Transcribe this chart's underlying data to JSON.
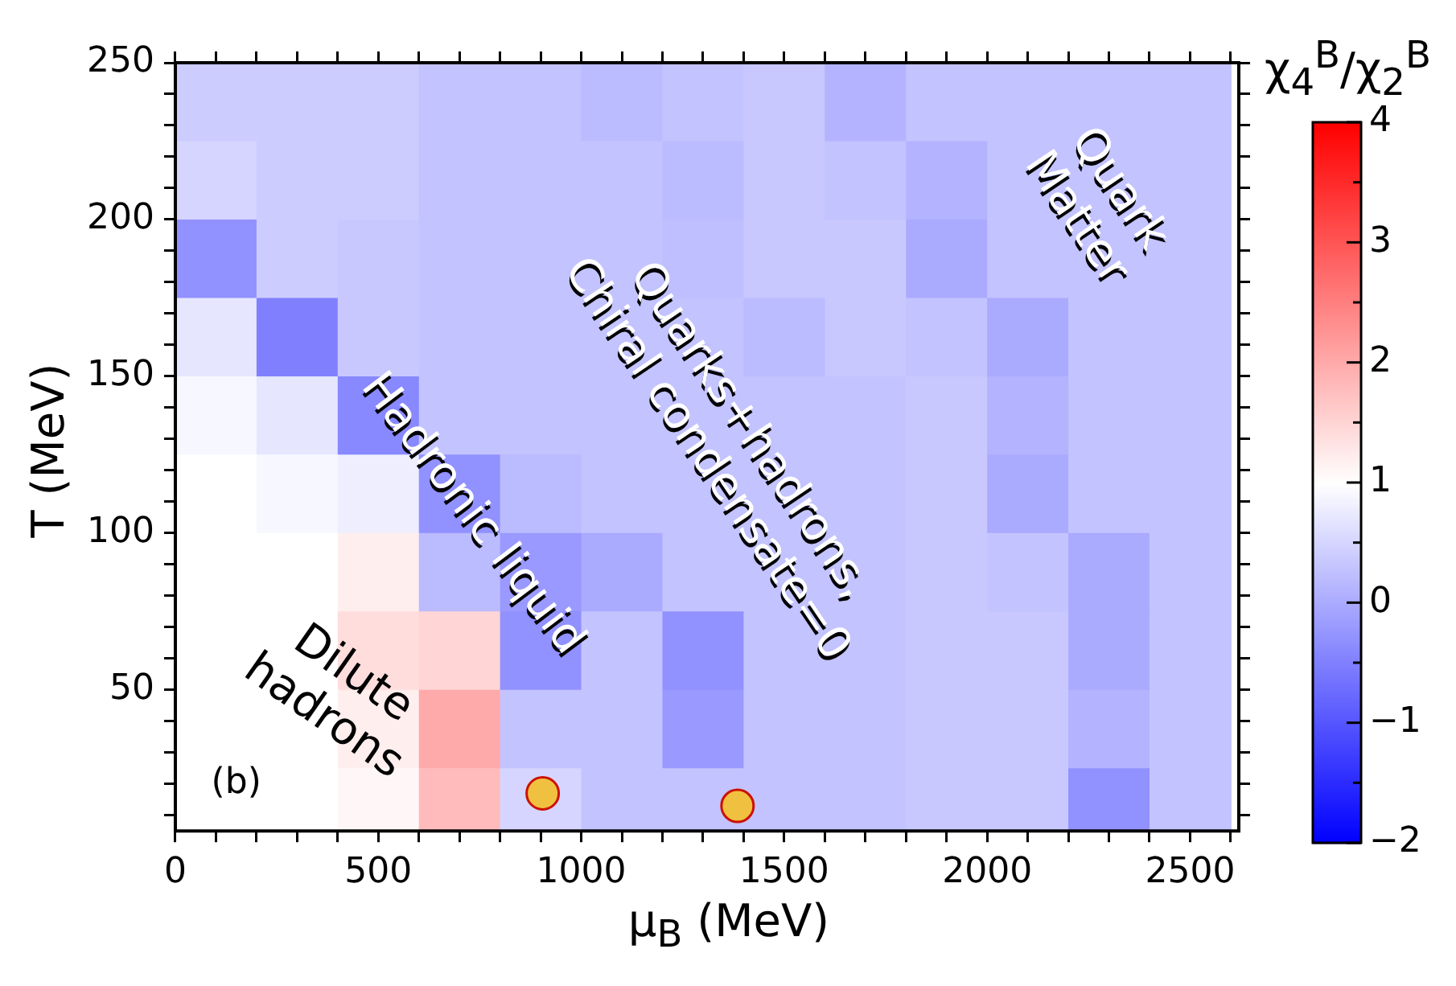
{
  "chart_data": {
    "type": "heatmap",
    "xlabel": "μ$_{B}$ (MeV)",
    "ylabel": "T (MeV)",
    "clabel": "χ$_{4}$$^{B}$/χ$_{2}$$^{B}$",
    "x": [
      100,
      300,
      500,
      700,
      900,
      1100,
      1300,
      1500,
      1700,
      1900,
      2100,
      2300,
      2500
    ],
    "y": [
      237.5,
      212.5,
      187.5,
      162.5,
      137.5,
      112.5,
      87.5,
      62.5,
      37.5,
      12.5
    ],
    "cells": [
      [
        0.4,
        0.4,
        0.4,
        0.3,
        0.3,
        0.2,
        0.3,
        0.35,
        0.1,
        0.3,
        0.3,
        0.3,
        0.3
      ],
      [
        0.5,
        0.4,
        0.4,
        0.3,
        0.3,
        0.3,
        0.2,
        0.35,
        0.3,
        0.1,
        0.3,
        0.3,
        0.3
      ],
      [
        -0.3,
        0.4,
        0.35,
        0.3,
        0.3,
        0.3,
        0.25,
        0.35,
        0.35,
        0.0,
        0.3,
        0.3,
        0.3
      ],
      [
        0.7,
        -0.5,
        0.35,
        0.3,
        0.3,
        0.3,
        0.3,
        0.2,
        0.35,
        0.3,
        0.0,
        0.3,
        0.3
      ],
      [
        0.9,
        0.7,
        -0.4,
        0.3,
        0.3,
        0.3,
        0.3,
        0.3,
        0.3,
        0.35,
        0.1,
        0.3,
        0.3
      ],
      [
        1.0,
        0.9,
        0.8,
        -0.3,
        0.2,
        0.3,
        0.3,
        0.3,
        0.3,
        0.35,
        0.0,
        0.3,
        0.3
      ],
      [
        1.0,
        1.0,
        1.2,
        0.2,
        -0.2,
        0.0,
        0.3,
        0.3,
        0.3,
        0.35,
        0.3,
        0.0,
        0.3
      ],
      [
        1.0,
        1.0,
        1.4,
        1.5,
        -0.3,
        0.3,
        -0.3,
        0.3,
        0.3,
        0.35,
        0.35,
        0.0,
        0.3
      ],
      [
        1.0,
        1.0,
        1.2,
        2.0,
        0.3,
        0.3,
        -0.2,
        0.3,
        0.3,
        0.35,
        0.35,
        0.1,
        0.3
      ],
      [
        1.0,
        1.0,
        1.1,
        1.8,
        0.5,
        0.3,
        0.3,
        0.3,
        0.3,
        0.35,
        0.35,
        -0.3,
        0.3
      ]
    ],
    "clim": [
      -2,
      4
    ],
    "cticks": [
      -2,
      {
        "value": -1.5,
        "label": null
      },
      -1,
      {
        "value": -0.5,
        "label": null
      },
      0,
      {
        "value": 0.5,
        "label": null
      },
      1,
      {
        "value": 1.5,
        "label": null
      },
      2,
      {
        "value": 2.5,
        "label": null
      },
      3,
      {
        "value": 3.5,
        "label": null
      },
      4
    ],
    "series": [
      {
        "type": "scatter",
        "x": [
          905,
          1385
        ],
        "values": [
          17,
          13
        ],
        "color": "#f0c040",
        "marker": "circle"
      }
    ],
    "xlim": [
      0,
      2620
    ],
    "ylim": [
      5,
      250
    ],
    "xticks": [
      0,
      {
        "value": 100,
        "label": null
      },
      {
        "value": 200,
        "label": null
      },
      {
        "value": 300,
        "label": null
      },
      {
        "value": 400,
        "label": null
      },
      500,
      {
        "value": 600,
        "label": null
      },
      {
        "value": 700,
        "label": null
      },
      {
        "value": 800,
        "label": null
      },
      {
        "value": 900,
        "label": null
      },
      1000,
      {
        "value": 1100,
        "label": null
      },
      {
        "value": 1200,
        "label": null
      },
      {
        "value": 1300,
        "label": null
      },
      {
        "value": 1400,
        "label": null
      },
      1500,
      {
        "value": 1600,
        "label": null
      },
      {
        "value": 1700,
        "label": null
      },
      {
        "value": 1800,
        "label": null
      },
      {
        "value": 1900,
        "label": null
      },
      2000,
      {
        "value": 2100,
        "label": null
      },
      {
        "value": 2200,
        "label": null
      },
      {
        "value": 2300,
        "label": null
      },
      {
        "value": 2400,
        "label": null
      },
      2500,
      {
        "value": 2600,
        "label": null
      }
    ],
    "yticks": [
      {
        "value": 10,
        "label": null
      },
      {
        "value": 20,
        "label": null
      },
      {
        "value": 30,
        "label": null
      },
      {
        "value": 40,
        "label": null
      },
      50,
      {
        "value": 60,
        "label": null
      },
      {
        "value": 70,
        "label": null
      },
      {
        "value": 80,
        "label": null
      },
      {
        "value": 90,
        "label": null
      },
      100,
      {
        "value": 110,
        "label": null
      },
      {
        "value": 120,
        "label": null
      },
      {
        "value": 130,
        "label": null
      },
      {
        "value": 140,
        "label": null
      },
      150,
      {
        "value": 160,
        "label": null
      },
      {
        "value": 170,
        "label": null
      },
      {
        "value": 180,
        "label": null
      },
      {
        "value": 190,
        "label": null
      },
      200,
      {
        "value": 210,
        "label": null
      },
      {
        "value": 220,
        "label": null
      },
      {
        "value": 230,
        "label": null
      },
      {
        "value": 240,
        "label": null
      },
      250
    ],
    "annotations": [
      "(b)",
      "Dilute\nhadrons",
      "Hadronic liquid",
      "Quarks+hadrons,\nChiral condensate=0",
      "Quark\nMatter"
    ],
    "legend": false,
    "grid": false
  }
}
